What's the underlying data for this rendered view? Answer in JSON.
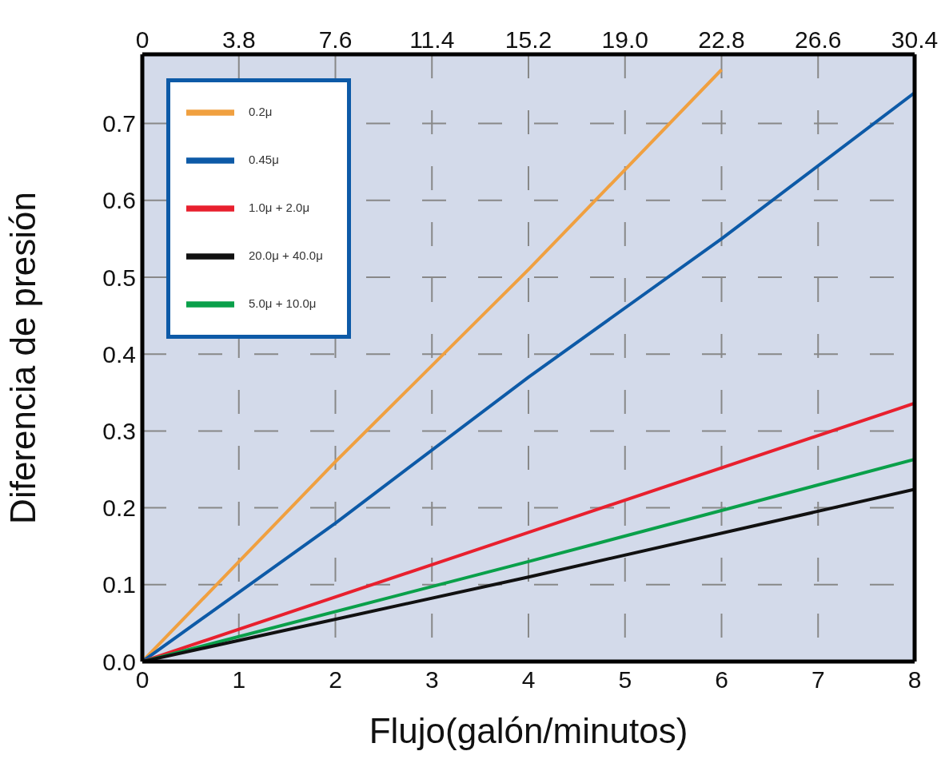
{
  "chart_data": {
    "type": "line",
    "xlabel": "Flujo(galón/minutos)",
    "ylabel": "Diferencia de presión",
    "xlim": [
      0,
      8
    ],
    "xticks": [
      0,
      1,
      2,
      3,
      4,
      5,
      6,
      7,
      8
    ],
    "x2lim": [
      0,
      30.4
    ],
    "x2ticks": [
      0,
      3.8,
      7.6,
      11.4,
      15.2,
      {
        "value": 19,
        "label": "19.0"
      },
      22.8,
      26.6,
      30.4
    ],
    "ylim": [
      0,
      0.79
    ],
    "yticks": [
      {
        "value": 0,
        "label": "0.0"
      },
      0.1,
      0.2,
      0.3,
      0.4,
      0.5,
      0.6,
      0.7
    ],
    "grid": true,
    "line_style": "solid",
    "legend": "top left",
    "series": [
      {
        "name": "0.2μ",
        "color": "#f0a040",
        "x": [
          0,
          2,
          4,
          6
        ],
        "values": [
          0,
          0.26,
          0.51,
          0.77
        ]
      },
      {
        "name": "0.45μ",
        "color": "#0d5aa7",
        "x": [
          0,
          2,
          4,
          6,
          8
        ],
        "values": [
          0,
          0.18,
          0.37,
          0.55,
          0.74
        ]
      },
      {
        "name": "1.0μ + 2.0μ",
        "color": "#e8202e",
        "x": [
          0,
          4,
          8
        ],
        "values": [
          0,
          0.168,
          0.336
        ]
      },
      {
        "name": "5.0μ + 10.0μ",
        "color": "#0aa04a",
        "x": [
          0,
          4,
          8
        ],
        "values": [
          0,
          0.13,
          0.263
        ]
      },
      {
        "name": "20.0μ + 40.0μ",
        "color": "#111111",
        "x": [
          0,
          4,
          8
        ],
        "values": [
          0,
          0.11,
          0.224
        ]
      }
    ]
  }
}
